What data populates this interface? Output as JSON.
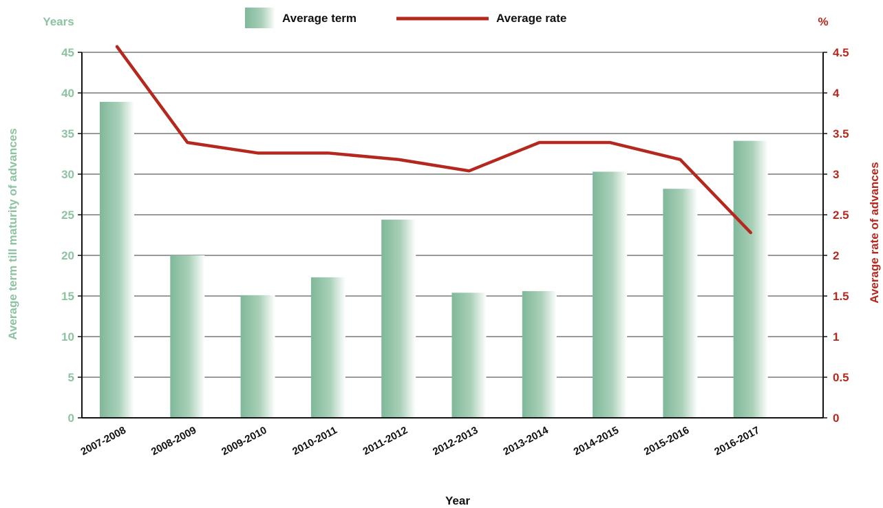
{
  "chart_data": {
    "type": "bar",
    "categories": [
      "2007-2008",
      "2008-2009",
      "2009-2010",
      "2010-2011",
      "2011-2012",
      "2012-2013",
      "2013-2014",
      "2014-2015",
      "2015-2016",
      "2016-2017"
    ],
    "series": [
      {
        "name": "Average term",
        "type": "bar",
        "axis": "left",
        "values": [
          38.9,
          20.0,
          15.1,
          17.3,
          24.4,
          15.4,
          15.6,
          30.3,
          28.2,
          34.1
        ]
      },
      {
        "name": "Average rate",
        "type": "line",
        "axis": "right",
        "values": [
          4.57,
          3.39,
          3.26,
          3.26,
          3.18,
          3.04,
          3.39,
          3.39,
          3.18,
          2.28
        ]
      }
    ],
    "xlabel": "Year",
    "ylabel_left": "Average term till maturity of advances",
    "ylabel_right": "Average rate of advances",
    "left_unit": "Years",
    "right_unit": "%",
    "ylim_left": [
      0,
      45
    ],
    "ylim_right": [
      0,
      4.5
    ],
    "yticks_left": [
      "0",
      "5",
      "10",
      "15",
      "20",
      "25",
      "30",
      "35",
      "40",
      "45"
    ],
    "yticks_right": [
      "0",
      "0.5",
      "1",
      "1.5",
      "2",
      "2.5",
      "3",
      "3.5",
      "4",
      "4.5"
    ],
    "grid": true,
    "legend_position": "top-center"
  },
  "colors": {
    "bar": "#7fb89a",
    "line": "#b5281e",
    "left_axis_text": "#8cc3a0",
    "right_axis_text": "#b5281e",
    "grid": "#333333"
  }
}
